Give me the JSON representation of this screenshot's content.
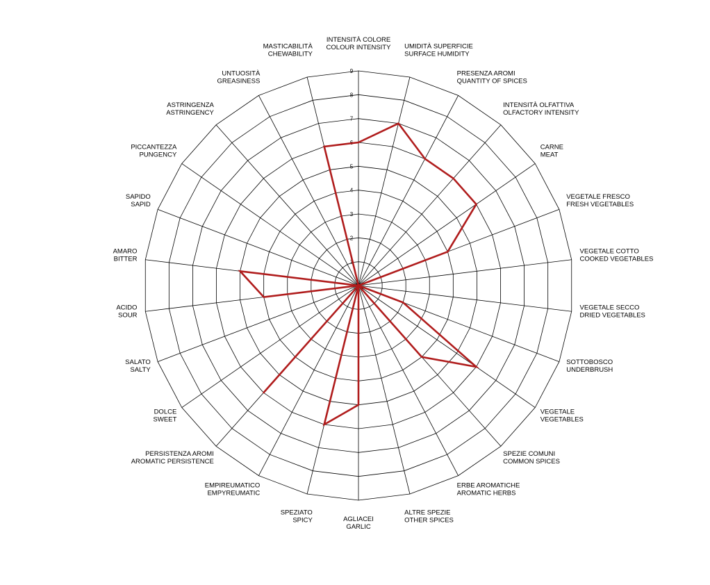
{
  "chart_data": {
    "type": "radar",
    "title": "",
    "rlim": [
      0,
      9
    ],
    "ticks": [
      "1",
      "2",
      "3",
      "4",
      "5",
      "6",
      "7",
      "8",
      "9"
    ],
    "grid": true,
    "colors": {
      "series": "#b01c1c",
      "grid": "#000000"
    },
    "axes": [
      {
        "it": "INTENSITÀ COLORE",
        "en": "COLOUR INTENSITY"
      },
      {
        "it": "UMIDITÀ SUPERFICIE",
        "en": "SURFACE HUMIDITY"
      },
      {
        "it": "PRESENZA AROMI",
        "en": "QUANTITY OF SPICES"
      },
      {
        "it": "INTENSITÀ OLFATTIVA",
        "en": "OLFACTORY INTENSITY"
      },
      {
        "it": "CARNE",
        "en": "MEAT"
      },
      {
        "it": "VEGETALE FRESCO",
        "en": "FRESH VEGETABLES"
      },
      {
        "it": "VEGETALE COTTO",
        "en": "COOKED VEGETABLES"
      },
      {
        "it": "VEGETALE SECCO",
        "en": "DRIED VEGETABLES"
      },
      {
        "it": "SOTTOBOSCO",
        "en": "UNDERBRUSH"
      },
      {
        "it": "VEGETALE",
        "en": "VEGETABLES"
      },
      {
        "it": "SPEZIE COMUNI",
        "en": "COMMON SPICES"
      },
      {
        "it": "ERBE AROMATICHE",
        "en": "AROMATIC HERBS"
      },
      {
        "it": "ALTRE SPEZIE",
        "en": "OTHER SPICES"
      },
      {
        "it": "AGLIACEI",
        "en": "GARLIC"
      },
      {
        "it": "SPEZIATO",
        "en": "SPICY"
      },
      {
        "it": "EMPIREUMATICO",
        "en": "EMPYREUMATIC"
      },
      {
        "it": "PERSISTENZA AROMI",
        "en": "AROMATIC PERSISTENCE"
      },
      {
        "it": "DOLCE",
        "en": "SWEET"
      },
      {
        "it": "SALATO",
        "en": "SALTY"
      },
      {
        "it": "ACIDO",
        "en": "SOUR"
      },
      {
        "it": "AMARO",
        "en": "BITTER"
      },
      {
        "it": "SAPIDO",
        "en": "SAPID"
      },
      {
        "it": "PICCANTEZZA",
        "en": "PUNGENCY"
      },
      {
        "it": "ASTRINGENZA",
        "en": "ASTRINGENCY"
      },
      {
        "it": "UNTUOSITÀ",
        "en": "GREASINESS"
      },
      {
        "it": "MASTICABILITÀ",
        "en": "CHEWABILITY"
      }
    ],
    "series": [
      {
        "values": [
          6,
          7,
          6,
          6,
          6,
          4,
          0,
          0,
          2,
          6,
          4,
          0,
          0,
          5,
          6,
          0,
          6,
          0,
          0,
          4,
          5,
          0,
          0,
          0,
          0,
          6
        ]
      }
    ]
  }
}
